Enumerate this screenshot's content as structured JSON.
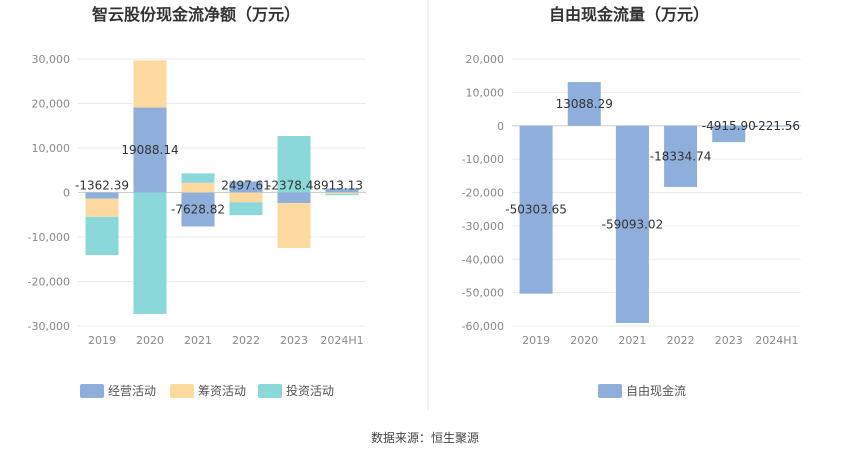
{
  "source_text": "数据来源：恒生聚源",
  "chart_data": [
    {
      "type": "bar",
      "stacked": true,
      "title": "智云股份现金流净额（万元）",
      "categories": [
        "2019",
        "2020",
        "2021",
        "2022",
        "2023",
        "2024H1"
      ],
      "ylim": [
        -30000,
        30000
      ],
      "yticks": [
        -30000,
        -20000,
        -10000,
        0,
        10000,
        20000,
        30000
      ],
      "ytick_labels": [
        "-30,000",
        "-20,000",
        "-10,000",
        "0",
        "10,000",
        "20,000",
        "30,000"
      ],
      "grid": true,
      "legend_position": "bottom",
      "series": [
        {
          "name": "经营活动",
          "color": "#8eaedb",
          "values": [
            -1362.39,
            19088.14,
            -7628.82,
            2497.61,
            -2378.48,
            913.13
          ],
          "labels": [
            "-1362.39",
            "19088.14",
            "-7628.82",
            "2497.61",
            "-2378.48",
            "913.13"
          ]
        },
        {
          "name": "筹资活动",
          "color": "#fdd9a0",
          "values": [
            -4100,
            10600,
            2200,
            -2200,
            -10100,
            -300
          ]
        },
        {
          "name": "投资活动",
          "color": "#8ad8da",
          "values": [
            -8600,
            -27300,
            2100,
            -2900,
            12700,
            -300
          ]
        }
      ]
    },
    {
      "type": "bar",
      "title": "自由现金流量（万元）",
      "categories": [
        "2019",
        "2020",
        "2021",
        "2022",
        "2023",
        "2024H1"
      ],
      "ylim": [
        -60000,
        20000
      ],
      "yticks": [
        -60000,
        -50000,
        -40000,
        -30000,
        -20000,
        -10000,
        0,
        10000,
        20000
      ],
      "ytick_labels": [
        "-60,000",
        "-50,000",
        "-40,000",
        "-30,000",
        "-20,000",
        "-10,000",
        "0",
        "10,000",
        "20,000"
      ],
      "grid": true,
      "legend_position": "bottom",
      "series": [
        {
          "name": "自由现金流",
          "color": "#8eaedb",
          "values": [
            -50303.65,
            13088.29,
            -59093.02,
            -18334.74,
            -4915.9,
            -221.56
          ],
          "labels": [
            "-50303.65",
            "13088.29",
            "-59093.02",
            "-18334.74",
            "-4915.90",
            "-221.56"
          ]
        }
      ]
    }
  ]
}
